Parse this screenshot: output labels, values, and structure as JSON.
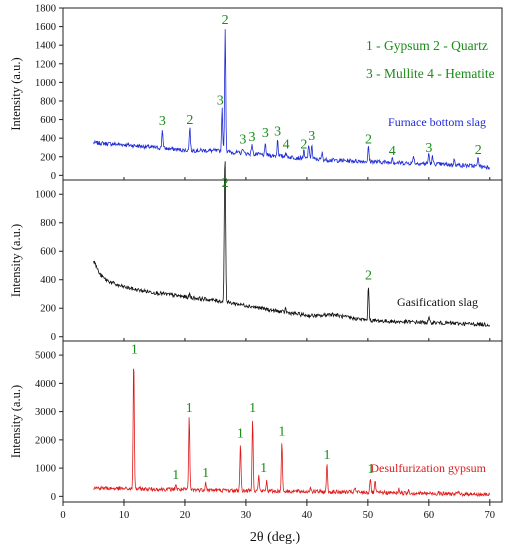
{
  "chart_data": {
    "type": "line",
    "xlabel": "2θ (deg.)",
    "x_ticks": [
      0,
      10,
      20,
      30,
      40,
      50,
      60,
      70
    ],
    "xlim": [
      0,
      72
    ],
    "legend_key": {
      "lines": [
        "1 - Gypsum  2 - Quartz",
        "3 - Mullite   4 - Hematite"
      ],
      "color": "#1a8c1a"
    },
    "panels": [
      {
        "name": "Furnace bottom slag",
        "ylabel": "Intensity (a.u.)",
        "color": "#1f2bd6",
        "ylim": [
          -50,
          1800
        ],
        "y_ticks": [
          0,
          200,
          400,
          600,
          800,
          1000,
          1200,
          1400,
          1600,
          1800
        ],
        "baseline": [
          [
            5,
            350
          ],
          [
            10,
            330
          ],
          [
            15,
            300
          ],
          [
            20,
            270
          ],
          [
            25,
            265
          ],
          [
            30,
            235
          ],
          [
            35,
            210
          ],
          [
            40,
            180
          ],
          [
            45,
            160
          ],
          [
            50,
            150
          ],
          [
            55,
            135
          ],
          [
            60,
            125
          ],
          [
            65,
            110
          ],
          [
            70,
            90
          ]
        ],
        "peaks": [
          [
            16.3,
            500
          ],
          [
            20.8,
            520
          ],
          [
            26.1,
            720
          ],
          [
            26.6,
            1590
          ],
          [
            29.5,
            300
          ],
          [
            31.0,
            340
          ],
          [
            33.2,
            330
          ],
          [
            35.2,
            390
          ],
          [
            36.5,
            250
          ],
          [
            39.5,
            260
          ],
          [
            40.3,
            340
          ],
          [
            40.8,
            330
          ],
          [
            42.5,
            240
          ],
          [
            50.1,
            310
          ],
          [
            54.0,
            200
          ],
          [
            57.5,
            220
          ],
          [
            60.0,
            240
          ],
          [
            60.6,
            200
          ],
          [
            64.2,
            180
          ],
          [
            68.1,
            200
          ]
        ],
        "labels": [
          {
            "text": "3",
            "x": 16.3,
            "y": 540
          },
          {
            "text": "2",
            "x": 20.8,
            "y": 550
          },
          {
            "text": "3",
            "x": 25.8,
            "y": 760
          },
          {
            "text": "2",
            "x": 26.6,
            "y": 1630
          },
          {
            "text": "3",
            "x": 29.5,
            "y": 340
          },
          {
            "text": "3",
            "x": 31.0,
            "y": 370
          },
          {
            "text": "3",
            "x": 33.2,
            "y": 410
          },
          {
            "text": "3",
            "x": 35.2,
            "y": 430
          },
          {
            "text": "4",
            "x": 36.6,
            "y": 290
          },
          {
            "text": "2",
            "x": 39.5,
            "y": 290
          },
          {
            "text": "3",
            "x": 40.8,
            "y": 380
          },
          {
            "text": "2",
            "x": 50.1,
            "y": 340
          },
          {
            "text": "4",
            "x": 54.0,
            "y": 220
          },
          {
            "text": "3",
            "x": 60.0,
            "y": 250
          },
          {
            "text": "2",
            "x": 68.1,
            "y": 230
          }
        ]
      },
      {
        "name": "Gasification slag",
        "ylabel": "Intensity (a.u.)",
        "color": "#111111",
        "ylim": [
          -30,
          1100
        ],
        "y_ticks": [
          0,
          200,
          400,
          600,
          800,
          1000
        ],
        "baseline": [
          [
            5,
            540
          ],
          [
            6,
            440
          ],
          [
            7,
            400
          ],
          [
            9,
            360
          ],
          [
            12,
            330
          ],
          [
            15,
            310
          ],
          [
            20,
            280
          ],
          [
            25,
            255
          ],
          [
            30,
            220
          ],
          [
            35,
            180
          ],
          [
            40,
            150
          ],
          [
            42,
            145
          ],
          [
            44,
            160
          ],
          [
            46,
            140
          ],
          [
            50,
            115
          ],
          [
            55,
            105
          ],
          [
            60,
            100
          ],
          [
            65,
            92
          ],
          [
            70,
            85
          ]
        ],
        "peaks": [
          [
            20.8,
            300
          ],
          [
            26.6,
            1010
          ],
          [
            26.5,
            670
          ],
          [
            36.5,
            200
          ],
          [
            50.1,
            360
          ],
          [
            60.0,
            130
          ]
        ],
        "labels": [
          {
            "text": "2",
            "x": 26.6,
            "y": 1050
          },
          {
            "text": "2",
            "x": 50.1,
            "y": 400
          }
        ]
      },
      {
        "name": "Desulfurization gypsum",
        "ylabel": "Intensity (a.u.)",
        "color": "#e01a1a",
        "ylim": [
          -200,
          5500
        ],
        "y_ticks": [
          0,
          1000,
          2000,
          3000,
          4000,
          5000
        ],
        "baseline": [
          [
            5,
            300
          ],
          [
            10,
            270
          ],
          [
            20,
            240
          ],
          [
            30,
            200
          ],
          [
            40,
            170
          ],
          [
            50,
            140
          ],
          [
            60,
            100
          ],
          [
            70,
            60
          ]
        ],
        "peaks": [
          [
            11.6,
            4900
          ],
          [
            18.5,
            450
          ],
          [
            20.7,
            2800
          ],
          [
            23.4,
            520
          ],
          [
            29.1,
            1900
          ],
          [
            31.1,
            2800
          ],
          [
            32.1,
            750
          ],
          [
            33.4,
            550
          ],
          [
            35.9,
            1980
          ],
          [
            40.6,
            350
          ],
          [
            43.3,
            1150
          ],
          [
            47.9,
            300
          ],
          [
            50.4,
            650
          ],
          [
            51.2,
            500
          ],
          [
            55.1,
            280
          ],
          [
            56.7,
            250
          ],
          [
            61.6,
            180
          ],
          [
            64.8,
            160
          ],
          [
            66.8,
            140
          ]
        ],
        "labels": [
          {
            "text": "1",
            "x": 11.7,
            "y": 5050
          },
          {
            "text": "1",
            "x": 18.5,
            "y": 620
          },
          {
            "text": "1",
            "x": 20.7,
            "y": 2980
          },
          {
            "text": "1",
            "x": 23.4,
            "y": 680
          },
          {
            "text": "1",
            "x": 29.1,
            "y": 2080
          },
          {
            "text": "1",
            "x": 31.1,
            "y": 2980
          },
          {
            "text": "1",
            "x": 32.9,
            "y": 860
          },
          {
            "text": "1",
            "x": 35.9,
            "y": 2160
          },
          {
            "text": "1",
            "x": 43.3,
            "y": 1330
          },
          {
            "text": "1",
            "x": 50.5,
            "y": 830
          }
        ]
      }
    ]
  }
}
